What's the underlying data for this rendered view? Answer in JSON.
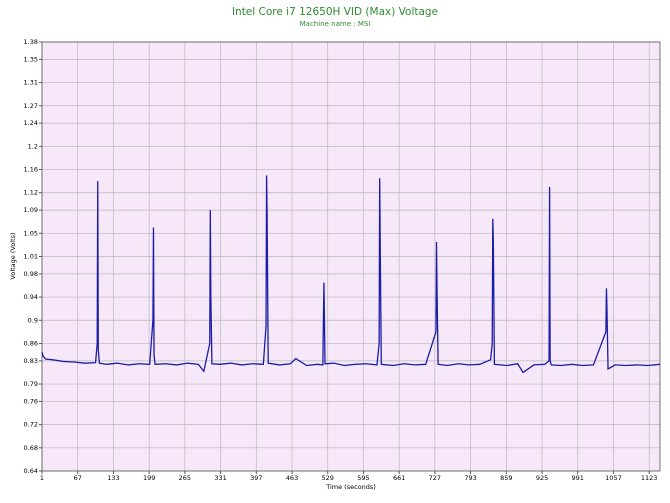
{
  "chart_data": {
    "type": "line",
    "title": "Intel Core i7 12650H VID (Max) Voltage",
    "subtitle": "Machine name : MSI",
    "x_label": "Time (seconds)",
    "y_label": "Voltage (Volts)",
    "color": "#1c1ca6",
    "grid": true,
    "xlim": [
      1,
      1143
    ],
    "ylim": [
      0.64,
      1.38
    ],
    "xticks": [
      1,
      67,
      133,
      199,
      265,
      331,
      397,
      463,
      529,
      595,
      661,
      727,
      793,
      859,
      925,
      991,
      1057,
      1123
    ],
    "yticks": [
      0.64,
      0.68,
      0.72,
      0.76,
      0.79,
      0.83,
      0.86,
      0.9,
      0.94,
      0.98,
      1.01,
      1.05,
      1.09,
      1.12,
      1.16,
      1.2,
      1.24,
      1.27,
      1.31,
      1.35,
      1.38
    ],
    "x": [
      1,
      3,
      8,
      20,
      40,
      60,
      80,
      100,
      103,
      104,
      105,
      107,
      120,
      140,
      160,
      180,
      200,
      206,
      207,
      208,
      210,
      230,
      250,
      270,
      290,
      300,
      311,
      312,
      313,
      315,
      330,
      350,
      370,
      390,
      410,
      415,
      416,
      417,
      419,
      440,
      460,
      470,
      490,
      510,
      520,
      521,
      522,
      524,
      540,
      560,
      580,
      600,
      620,
      624,
      625,
      626,
      628,
      650,
      670,
      690,
      710,
      729,
      730,
      731,
      733,
      750,
      770,
      790,
      810,
      830,
      833,
      834,
      835,
      837,
      860,
      880,
      890,
      910,
      930,
      938,
      939,
      940,
      942,
      960,
      980,
      1000,
      1020,
      1043,
      1044,
      1045,
      1047,
      1060,
      1080,
      1100,
      1120,
      1143
    ],
    "values": [
      0.845,
      0.838,
      0.833,
      0.832,
      0.829,
      0.828,
      0.826,
      0.827,
      0.86,
      1.14,
      0.85,
      0.826,
      0.824,
      0.826,
      0.823,
      0.825,
      0.824,
      0.9,
      1.06,
      0.84,
      0.824,
      0.825,
      0.823,
      0.826,
      0.824,
      0.812,
      0.86,
      1.09,
      0.94,
      0.825,
      0.824,
      0.826,
      0.823,
      0.825,
      0.824,
      0.89,
      1.15,
      1.08,
      0.826,
      0.823,
      0.825,
      0.834,
      0.822,
      0.824,
      0.823,
      0.9,
      0.965,
      0.825,
      0.826,
      0.822,
      0.824,
      0.825,
      0.823,
      0.86,
      1.145,
      1.03,
      0.824,
      0.822,
      0.825,
      0.823,
      0.824,
      0.88,
      1.035,
      0.95,
      0.824,
      0.822,
      0.825,
      0.823,
      0.824,
      0.832,
      0.86,
      1.075,
      1.04,
      0.824,
      0.822,
      0.825,
      0.81,
      0.823,
      0.824,
      0.83,
      1.13,
      0.83,
      0.823,
      0.822,
      0.824,
      0.822,
      0.823,
      0.88,
      0.955,
      0.92,
      0.816,
      0.823,
      0.822,
      0.823,
      0.822,
      0.824
    ]
  }
}
